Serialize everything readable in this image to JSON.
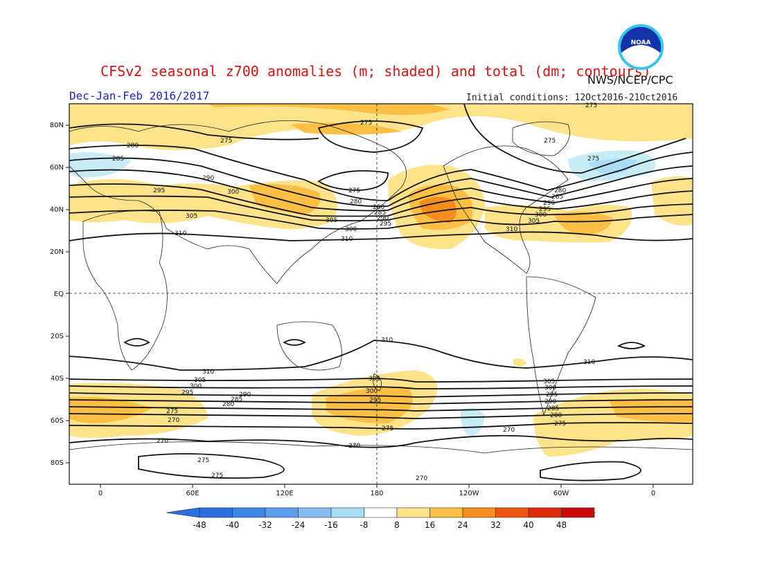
{
  "header": {
    "title": "CFSv2 seasonal z700 anomalies (m; shaded) and total (dm; contours)",
    "agency": "NWS/NCEP/CPC",
    "logo_text": "NOAA",
    "season": "Dec-Jan-Feb 2016/2017",
    "initial_conditions": "Initial conditions: 12Oct2016-21Oct2016"
  },
  "map": {
    "lat_ticks": [
      "80N",
      "60N",
      "40N",
      "20N",
      "EQ",
      "20S",
      "40S",
      "60S",
      "80S"
    ],
    "lon_ticks": [
      "0",
      "60E",
      "120E",
      "180",
      "120W",
      "60W",
      "0"
    ]
  },
  "colorbar": {
    "labels": [
      "-48",
      "-40",
      "-32",
      "-24",
      "-16",
      "-8",
      "8",
      "16",
      "24",
      "32",
      "40",
      "48"
    ],
    "colors": [
      "#2b6fe0",
      "#3d86ea",
      "#5a9cee",
      "#86bdf2",
      "#a8def5",
      "#ffffff",
      "#fde38a",
      "#fbbf45",
      "#f58d1c",
      "#ee5512",
      "#dd2a0c",
      "#c80a0a"
    ],
    "left_arrow_color": "#2b6fe0",
    "right_arrow_color": "#b00808"
  },
  "contour_labels": {
    "nh": [
      "275",
      "280",
      "285",
      "275",
      "290",
      "295",
      "300",
      "305",
      "310",
      "280",
      "275",
      "280",
      "285",
      "290",
      "295",
      "300",
      "305",
      "310",
      "275",
      "280",
      "285",
      "290",
      "295",
      "300",
      "305",
      "310",
      "275",
      "275"
    ],
    "sh": [
      "310",
      "310",
      "310",
      "305",
      "300",
      "295",
      "290",
      "285",
      "280",
      "275",
      "270",
      "305",
      "300",
      "295",
      "275",
      "270",
      "305",
      "300",
      "295",
      "290",
      "285",
      "280",
      "275",
      "270",
      "270",
      "275",
      "275",
      "270"
    ]
  },
  "colors": {
    "anomaly_pos_light": "#fde38a",
    "anomaly_pos_mid": "#fbbf45",
    "anomaly_pos_strong": "#f58d1c",
    "anomaly_pos_peak": "#ee5512",
    "anomaly_neg_light": "#c8ecf6",
    "anomaly_neg_mid": "#a8def5"
  }
}
